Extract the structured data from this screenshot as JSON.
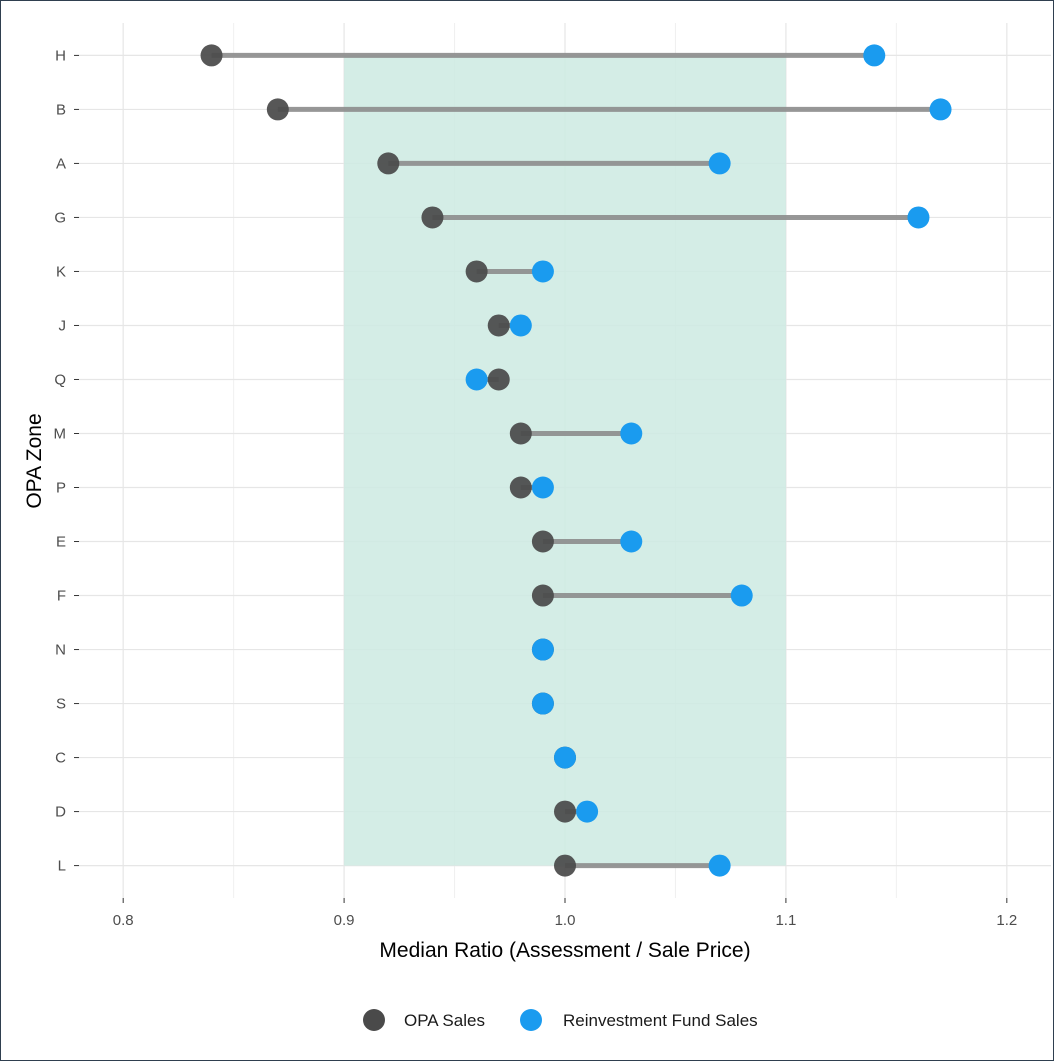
{
  "chart_data": {
    "type": "dumbbell",
    "xlabel": "Median Ratio (Assessment / Sale Price)",
    "ylabel": "OPA Zone",
    "xlim": [
      0.78,
      1.22
    ],
    "x_ticks": [
      "0.8",
      "0.9",
      "1.0",
      "1.1",
      "1.2"
    ],
    "x_tick_values": [
      0.8,
      0.9,
      1.0,
      1.1,
      1.2
    ],
    "grid": true,
    "legend_position": "bottom",
    "band": {
      "x_start": 0.9,
      "x_end": 1.1,
      "color": "#cdeae2"
    },
    "colors": {
      "opa": "#4a4a4a",
      "reinvestment": "#1a9bef",
      "segment": "#8c8c8c",
      "grid_major": "#e6e6e6",
      "grid_minor": "#f0f0f0"
    },
    "categories": [
      "H",
      "B",
      "A",
      "G",
      "K",
      "J",
      "Q",
      "M",
      "P",
      "E",
      "F",
      "N",
      "S",
      "C",
      "D",
      "L"
    ],
    "series": [
      {
        "name": "OPA Sales",
        "values": [
          0.84,
          0.87,
          0.92,
          0.94,
          0.96,
          0.97,
          0.97,
          0.98,
          0.98,
          0.99,
          0.99,
          0.99,
          0.99,
          1.0,
          1.0,
          1.0
        ]
      },
      {
        "name": "Reinvestment Fund Sales",
        "values": [
          1.14,
          1.17,
          1.07,
          1.16,
          0.99,
          0.98,
          0.96,
          1.03,
          0.99,
          1.03,
          1.08,
          0.99,
          0.99,
          1.0,
          1.01,
          1.07
        ]
      }
    ]
  }
}
